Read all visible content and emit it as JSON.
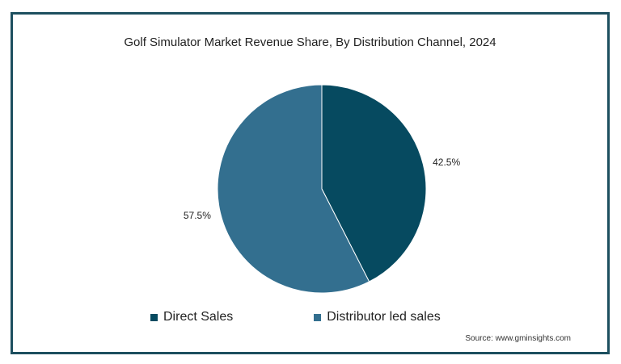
{
  "chart_data": {
    "type": "pie",
    "title": "Golf Simulator Market Revenue Share, By Distribution Channel, 2024",
    "slices": [
      {
        "name": "Direct Sales",
        "value": 42.5,
        "label": "42.5%",
        "color": "#064a60"
      },
      {
        "name": "Distributor led sales",
        "value": 57.5,
        "label": "57.5%",
        "color": "#336f8f"
      }
    ],
    "legend": "bottom",
    "source": "Source: www.gminsights.com"
  },
  "colors": {
    "border": "#1d4f5f",
    "background": "#ffffff"
  }
}
